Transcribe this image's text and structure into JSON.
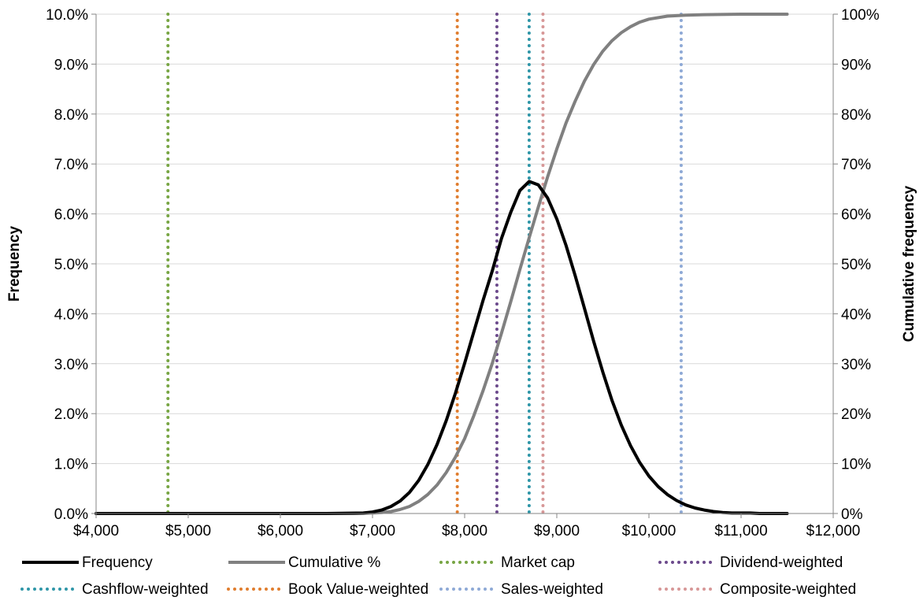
{
  "chart_data": {
    "type": "line",
    "title": "",
    "xlabel": "",
    "ylabel": "Frequency",
    "y2label": "Cumulative frequency",
    "xlim": [
      4000,
      12000
    ],
    "ylim": [
      0,
      0.1
    ],
    "y2lim": [
      0,
      1
    ],
    "x_ticks": [
      4000,
      5000,
      6000,
      7000,
      8000,
      9000,
      10000,
      11000,
      12000
    ],
    "x_tick_labels": [
      "$4,000",
      "$5,000",
      "$6,000",
      "$7,000",
      "$8,000",
      "$9,000",
      "$10,000",
      "$11,000",
      "$12,000"
    ],
    "y_ticks": [
      0,
      0.01,
      0.02,
      0.03,
      0.04,
      0.05,
      0.06,
      0.07,
      0.08,
      0.09,
      0.1
    ],
    "y_tick_labels": [
      "0.0%",
      "1.0%",
      "2.0%",
      "3.0%",
      "4.0%",
      "5.0%",
      "6.0%",
      "7.0%",
      "8.0%",
      "9.0%",
      "10.0%"
    ],
    "y2_ticks": [
      0,
      0.1,
      0.2,
      0.3,
      0.4,
      0.5,
      0.6,
      0.7,
      0.8,
      0.9,
      1.0
    ],
    "y2_tick_labels": [
      "0%",
      "10%",
      "20%",
      "30%",
      "40%",
      "50%",
      "60%",
      "70%",
      "80%",
      "90%",
      "100%"
    ],
    "grid": "horizontal",
    "legend_position": "bottom",
    "series": [
      {
        "name": "Frequency",
        "axis": "left",
        "color": "#000000",
        "style": "solid",
        "x": [
          4000,
          6500,
          6900,
          7000,
          7100,
          7200,
          7300,
          7400,
          7500,
          7600,
          7700,
          7800,
          7900,
          8000,
          8100,
          8200,
          8300,
          8400,
          8500,
          8600,
          8700,
          8800,
          8900,
          9000,
          9100,
          9200,
          9300,
          9400,
          9500,
          9600,
          9700,
          9800,
          9900,
          10000,
          10100,
          10200,
          10300,
          10400,
          10500,
          10600,
          10700,
          10800,
          10900,
          11000,
          11100,
          11200,
          11300,
          11500
        ],
        "y": [
          0,
          0,
          0.0001,
          0.0003,
          0.0007,
          0.0014,
          0.0025,
          0.0042,
          0.0066,
          0.0098,
          0.0138,
          0.0186,
          0.0241,
          0.0301,
          0.0364,
          0.0427,
          0.0486,
          0.0551,
          0.0603,
          0.0647,
          0.0665,
          0.0658,
          0.0632,
          0.059,
          0.0537,
          0.0476,
          0.0411,
          0.0345,
          0.0283,
          0.0226,
          0.0177,
          0.0136,
          0.0102,
          0.0075,
          0.0054,
          0.0038,
          0.0026,
          0.0017,
          0.0011,
          0.0007,
          0.0004,
          0.0002,
          0.0001,
          0.0001,
          0.0001,
          0.0,
          0.0,
          0.0
        ]
      },
      {
        "name": "Cumulative %",
        "axis": "right",
        "color": "#808080",
        "style": "solid",
        "x": [
          4000,
          6800,
          7000,
          7100,
          7200,
          7300,
          7400,
          7500,
          7600,
          7700,
          7800,
          7900,
          8000,
          8100,
          8200,
          8300,
          8400,
          8500,
          8600,
          8700,
          8800,
          8900,
          9000,
          9100,
          9200,
          9300,
          9400,
          9500,
          9600,
          9700,
          9800,
          9900,
          10000,
          10200,
          10400,
          10600,
          11000,
          11500
        ],
        "y": [
          0,
          0,
          0.001,
          0.002,
          0.004,
          0.008,
          0.014,
          0.024,
          0.038,
          0.057,
          0.082,
          0.113,
          0.15,
          0.196,
          0.246,
          0.301,
          0.361,
          0.424,
          0.489,
          0.552,
          0.614,
          0.674,
          0.73,
          0.782,
          0.826,
          0.866,
          0.899,
          0.926,
          0.947,
          0.963,
          0.975,
          0.984,
          0.99,
          0.996,
          0.998,
          0.999,
          1.0,
          1.0
        ]
      }
    ],
    "vertical_lines": [
      {
        "name": "Market cap",
        "x": 4780,
        "color": "#77a543"
      },
      {
        "name": "Dividend-weighted",
        "x": 8350,
        "color": "#6c4a8c"
      },
      {
        "name": "Cashflow-weighted",
        "x": 8700,
        "color": "#2f96a8"
      },
      {
        "name": "Book Value-weighted",
        "x": 7920,
        "color": "#e07d2e"
      },
      {
        "name": "Sales-weighted",
        "x": 10350,
        "color": "#8ea9d6"
      },
      {
        "name": "Composite-weighted",
        "x": 8850,
        "color": "#d79797"
      }
    ]
  },
  "legend": [
    {
      "label": "Frequency",
      "color": "#000000",
      "style": "solid",
      "width": 4
    },
    {
      "label": "Cumulative %",
      "color": "#808080",
      "style": "solid",
      "width": 4
    },
    {
      "label": "Market cap",
      "color": "#77a543",
      "style": "dotted",
      "width": 4
    },
    {
      "label": "Dividend-weighted",
      "color": "#6c4a8c",
      "style": "dotted",
      "width": 4
    },
    {
      "label": "Cashflow-weighted",
      "color": "#2f96a8",
      "style": "dotted",
      "width": 4
    },
    {
      "label": "Book Value-weighted",
      "color": "#e07d2e",
      "style": "dotted",
      "width": 4
    },
    {
      "label": "Sales-weighted",
      "color": "#8ea9d6",
      "style": "dotted",
      "width": 4
    },
    {
      "label": "Composite-weighted",
      "color": "#d79797",
      "style": "dotted",
      "width": 4
    }
  ]
}
